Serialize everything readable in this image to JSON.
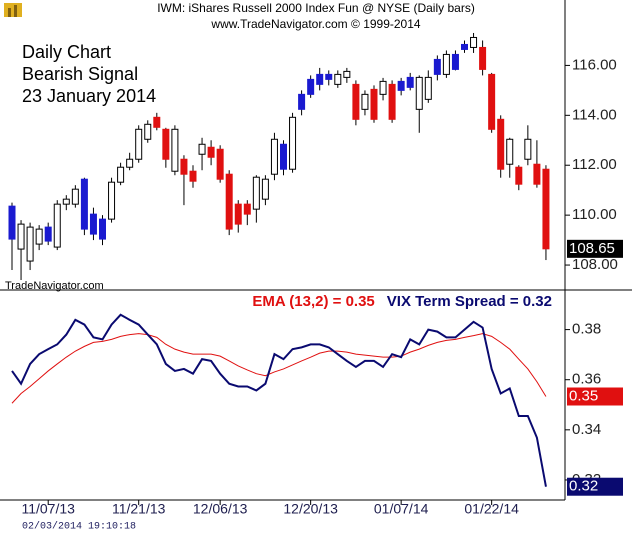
{
  "header": {
    "title": "IWM:  iShares Russell 2000 Index Fun @ NYSE  (Daily bars)",
    "subtitle": "www.TradeNavigator.com © 1999-2014"
  },
  "watermark": "TradeNavigator.com",
  "timestamp": "02/03/2014 19:10:18",
  "chart_data": [
    {
      "type": "candlestick",
      "annotations": [
        "Daily Chart",
        "Bearish Signal",
        "23 January 2014"
      ],
      "series": [
        {
          "open": [
            109.04,
            108.64,
            108.16,
            108.84,
            108.96,
            108.72,
            110.44,
            110.44,
            111.44,
            110.04,
            109.04,
            109.84,
            111.32,
            111.92,
            112.24,
            113.04,
            113.92,
            113.44,
            111.76,
            112.24,
            111.76,
            112.44,
            112.72,
            112.64,
            111.64,
            110.44,
            110.44,
            110.24,
            110.64,
            111.64,
            111.84,
            111.84,
            114.24,
            114.84,
            115.24,
            115.44,
            115.24,
            115.52,
            115.24,
            114.24,
            115.04,
            114.84,
            115.24,
            115.0,
            115.12,
            114.24,
            114.64,
            115.64,
            115.64,
            115.84,
            116.64,
            116.72,
            116.72,
            115.64,
            113.84,
            112.04,
            111.92,
            112.24,
            112.04,
            111.84
          ],
          "high": [
            110.5,
            109.8,
            109.7,
            109.6,
            109.7,
            110.6,
            110.8,
            111.2,
            111.5,
            110.3,
            110,
            111.5,
            112.1,
            112.5,
            113.6,
            113.8,
            114.1,
            113.5,
            113.6,
            112.4,
            112,
            113.1,
            113,
            112.8,
            111.8,
            110.6,
            110.6,
            111.6,
            111.6,
            113.3,
            113,
            114.1,
            115,
            115.6,
            115.9,
            115.8,
            115.8,
            115.9,
            115.4,
            115,
            115.2,
            115.5,
            115.4,
            115.5,
            115.7,
            115.6,
            115.8,
            116.4,
            116.6,
            116.6,
            117,
            117.3,
            117,
            115.7,
            114,
            113.1,
            112,
            113.6,
            113,
            112
          ],
          "low": [
            107.8,
            107.4,
            107.8,
            108.6,
            108.8,
            108.6,
            110.2,
            110.3,
            109.2,
            109,
            108.8,
            109.7,
            111.2,
            111.8,
            112.1,
            112.9,
            113.4,
            111.9,
            111.6,
            110.4,
            111.1,
            111.8,
            112,
            111.3,
            109.2,
            109.3,
            109.6,
            109.7,
            110.4,
            111.4,
            111.6,
            111.7,
            114,
            114.7,
            115,
            115.2,
            115.1,
            115.3,
            113.6,
            114,
            113.7,
            114.6,
            113.7,
            114.8,
            115,
            113.3,
            114.5,
            115.4,
            115.5,
            115.8,
            116.5,
            116.5,
            115.6,
            113.3,
            111.5,
            111.5,
            111,
            112,
            111.1,
            108.2
          ],
          "close": [
            110.36,
            109.64,
            109.52,
            109.44,
            109.52,
            110.44,
            110.64,
            111.04,
            109.44,
            109.24,
            109.84,
            111.32,
            111.92,
            112.24,
            113.44,
            113.64,
            113.52,
            112.24,
            113.44,
            111.64,
            111.36,
            112.84,
            112.32,
            111.44,
            109.44,
            109.64,
            110.04,
            111.52,
            111.44,
            113.04,
            112.84,
            113.92,
            114.84,
            115.44,
            115.64,
            115.64,
            115.64,
            115.76,
            113.84,
            114.84,
            113.84,
            115.36,
            113.84,
            115.36,
            115.52,
            115.52,
            115.52,
            116.24,
            116.44,
            116.44,
            116.84,
            117.12,
            115.84,
            113.44,
            111.84,
            113.04,
            111.24,
            113.04,
            111.24,
            108.65
          ],
          "colors": [
            "#1a1ad0",
            "#ffffff",
            "#ffffff",
            "#ffffff",
            "#1a1ad0",
            "#ffffff",
            "#ffffff",
            "#ffffff",
            "#1a1ad0",
            "#1a1ad0",
            "#1a1ad0",
            "#ffffff",
            "#ffffff",
            "#ffffff",
            "#ffffff",
            "#ffffff",
            "#e01010",
            "#e01010",
            "#ffffff",
            "#e01010",
            "#e01010",
            "#ffffff",
            "#e01010",
            "#e01010",
            "#e01010",
            "#e01010",
            "#e01010",
            "#ffffff",
            "#ffffff",
            "#ffffff",
            "#1a1ad0",
            "#ffffff",
            "#1a1ad0",
            "#1a1ad0",
            "#1a1ad0",
            "#1a1ad0",
            "#ffffff",
            "#ffffff",
            "#e01010",
            "#ffffff",
            "#e01010",
            "#ffffff",
            "#e01010",
            "#1a1ad0",
            "#1a1ad0",
            "#ffffff",
            "#ffffff",
            "#1a1ad0",
            "#ffffff",
            "#1a1ad0",
            "#1a1ad0",
            "#ffffff",
            "#e01010",
            "#e01010",
            "#e01010",
            "#ffffff",
            "#e01010",
            "#ffffff",
            "#e01010",
            "#e01010"
          ],
          "last_value_label": "108.65",
          "label_color": "#000000"
        }
      ],
      "ylim": [
        107.0,
        117.9
      ],
      "yticks": [
        {
          "value": 108,
          "label": "108.00"
        },
        {
          "value": 110,
          "label": "110.00"
        },
        {
          "value": 112,
          "label": "112.00"
        },
        {
          "value": 114,
          "label": "114.00"
        },
        {
          "value": 116,
          "label": "116.00"
        }
      ]
    },
    {
      "type": "line",
      "categories": [
        null,
        null,
        null,
        null,
        "11/07/13",
        null,
        null,
        null,
        null,
        null,
        null,
        null,
        null,
        null,
        "11/21/13",
        null,
        null,
        null,
        null,
        null,
        null,
        null,
        null,
        "12/06/13",
        null,
        null,
        null,
        null,
        null,
        null,
        null,
        null,
        null,
        "12/20/13",
        null,
        null,
        null,
        null,
        null,
        null,
        null,
        null,
        null,
        "01/07/14",
        null,
        null,
        null,
        null,
        null,
        null,
        null,
        null,
        null,
        "01/22/14",
        null,
        null,
        null,
        null,
        null,
        null
      ],
      "series": [
        {
          "name": "EMA (13,2) = 0.35",
          "color": "#e01010",
          "last_value_label": "0.35",
          "values": [
            0.3506,
            0.3545,
            0.3573,
            0.3604,
            0.3635,
            0.3663,
            0.369,
            0.3714,
            0.3733,
            0.3749,
            0.3753,
            0.3761,
            0.3773,
            0.378,
            0.3784,
            0.378,
            0.3769,
            0.3741,
            0.3722,
            0.371,
            0.3702,
            0.3702,
            0.3702,
            0.3694,
            0.3675,
            0.3655,
            0.3639,
            0.3624,
            0.3616,
            0.3631,
            0.3643,
            0.3659,
            0.3675,
            0.369,
            0.3706,
            0.3714,
            0.3714,
            0.371,
            0.3702,
            0.3698,
            0.3694,
            0.369,
            0.369,
            0.3694,
            0.371,
            0.3722,
            0.3737,
            0.3749,
            0.3757,
            0.3761,
            0.3769,
            0.3776,
            0.3784,
            0.3773,
            0.3749,
            0.3722,
            0.3682,
            0.3643,
            0.3592,
            0.3533
          ]
        },
        {
          "name": "VIX Term Spread = 0.32",
          "color": "#0a0a70",
          "last_value_label": "0.32",
          "values": [
            0.3635,
            0.3584,
            0.3663,
            0.3702,
            0.3722,
            0.3741,
            0.378,
            0.3839,
            0.382,
            0.3769,
            0.3761,
            0.382,
            0.3859,
            0.3839,
            0.382,
            0.378,
            0.3741,
            0.3663,
            0.3635,
            0.3643,
            0.3624,
            0.3682,
            0.3675,
            0.3624,
            0.3584,
            0.3573,
            0.3573,
            0.3557,
            0.3584,
            0.3702,
            0.3682,
            0.3722,
            0.3729,
            0.3741,
            0.3741,
            0.3729,
            0.3702,
            0.3675,
            0.3651,
            0.3675,
            0.3675,
            0.3651,
            0.3702,
            0.369,
            0.3761,
            0.3741,
            0.38,
            0.3792,
            0.3769,
            0.3769,
            0.38,
            0.3831,
            0.3808,
            0.3643,
            0.3545,
            0.3565,
            0.3455,
            0.3455,
            0.3369,
            0.3173
          ]
        }
      ],
      "ylim": [
        0.312,
        0.395
      ],
      "yticks": [
        0.32,
        0.34,
        0.36,
        0.38
      ]
    }
  ]
}
